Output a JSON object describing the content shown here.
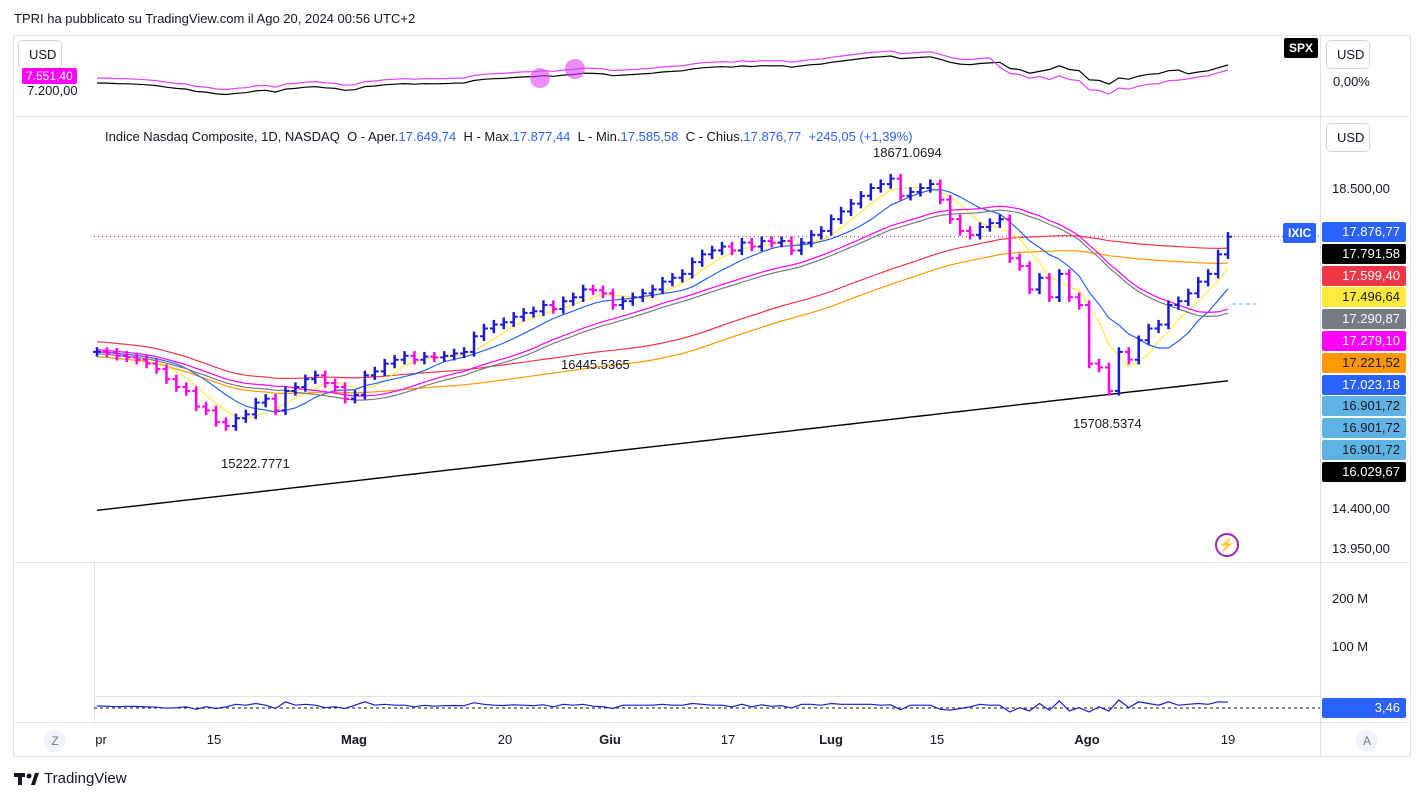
{
  "header": {
    "published": "TPRI ha pubblicato su TradingView.com il Ago 20, 2024 00:56 UTC+2"
  },
  "top_pane": {
    "currency_left": "USD",
    "currency_right": "USD",
    "symbol": "SPX",
    "left_tag": "7.551,40",
    "left_level": "7.200,00",
    "right_level": "0,00%"
  },
  "main_pane": {
    "currency": "USD",
    "legend": {
      "name": "Indice Nasdaq Composite, 1D, NASDAQ",
      "o_label": "O - Aper.",
      "o_value": "17.649,74",
      "h_label": "H - Max.",
      "h_value": "17.877,44",
      "l_label": "L - Min.",
      "l_value": "17.585,58",
      "c_label": "C - Chius.",
      "c_value": "17.876,77",
      "change": "+245,05 (+1,39%)"
    },
    "symbol_tag": "IXIC",
    "price_tags": [
      {
        "text": "17.876,77",
        "bg": "#2962ff",
        "fg": "#ffffff"
      },
      {
        "text": "17.791,58",
        "bg": "#000000",
        "fg": "#ffffff"
      },
      {
        "text": "17.599,40",
        "bg": "#f23645",
        "fg": "#ffffff"
      },
      {
        "text": "17.496,64",
        "bg": "#ffeb3b",
        "fg": "#131722"
      },
      {
        "text": "17.290,87",
        "bg": "#787b86",
        "fg": "#ffffff"
      },
      {
        "text": "17.279,10",
        "bg": "#ff00ff",
        "fg": "#ffffff"
      },
      {
        "text": "17.221,52",
        "bg": "#ff9800",
        "fg": "#131722"
      },
      {
        "text": "17.023,18",
        "bg": "#2962ff",
        "fg": "#ffffff"
      },
      {
        "text": "16.901,72",
        "bg": "#5eb3e4",
        "fg": "#131722"
      },
      {
        "text": "16.901,72",
        "bg": "#5eb3e4",
        "fg": "#131722"
      },
      {
        "text": "16.901,72",
        "bg": "#5eb3e4",
        "fg": "#131722"
      },
      {
        "text": "16.029,67",
        "bg": "#000000",
        "fg": "#ffffff"
      }
    ],
    "y_labels": [
      "18.500,00",
      "14.400,00",
      "13.950,00"
    ],
    "annotations": [
      "18671.0694",
      "16445.5365",
      "15222.7771",
      "15708.5374"
    ]
  },
  "volume_pane": {
    "labels": [
      "200 M",
      "100 M"
    ]
  },
  "osc_pane": {
    "tag": "3,46",
    "tag_bg": "#2962ff"
  },
  "x_axis": {
    "labels": [
      "pr",
      "15",
      "Mag",
      "20",
      "Giu",
      "17",
      "Lug",
      "15",
      "Ago",
      "19"
    ],
    "bold": [
      false,
      false,
      true,
      false,
      true,
      false,
      true,
      false,
      true,
      false
    ]
  },
  "footer": {
    "brand": "TradingView",
    "z_btn": "Z",
    "a_btn": "A"
  },
  "chart_data": {
    "type": "ohlc",
    "title": "Indice Nasdaq Composite, 1D, NASDAQ",
    "x_ticks": [
      "pr",
      "15",
      "Mag",
      "20",
      "Giu",
      "17",
      "Lug",
      "15",
      "Ago",
      "19"
    ],
    "y_ticks": [
      18500,
      14400,
      13950
    ],
    "last": {
      "open": 17649.74,
      "high": 17877.44,
      "low": 17585.58,
      "close": 17876.77,
      "change": 245.05,
      "change_pct": 1.39
    },
    "closes": [
      16400,
      16390,
      16350,
      16330,
      16300,
      16250,
      16180,
      16050,
      15950,
      15900,
      15700,
      15650,
      15500,
      15450,
      15550,
      15600,
      15750,
      15800,
      15650,
      15900,
      15950,
      16050,
      16100,
      16000,
      15950,
      15800,
      15850,
      16100,
      16150,
      16250,
      16300,
      16350,
      16300,
      16340,
      16330,
      16350,
      16380,
      16400,
      16600,
      16700,
      16750,
      16780,
      16850,
      16900,
      16920,
      17000,
      16950,
      17050,
      17100,
      17200,
      17190,
      17150,
      17000,
      17050,
      17100,
      17150,
      17200,
      17300,
      17350,
      17400,
      17550,
      17650,
      17700,
      17750,
      17700,
      17800,
      17750,
      17820,
      17800,
      17820,
      17700,
      17800,
      17900,
      17950,
      18100,
      18200,
      18300,
      18400,
      18500,
      18550,
      18620,
      18400,
      18450,
      18500,
      18550,
      18350,
      18100,
      17950,
      17900,
      18000,
      18050,
      18100,
      17600,
      17500,
      17200,
      17350,
      17100,
      17400,
      17100,
      17000,
      16250,
      16200,
      15900,
      16400,
      16300,
      16550,
      16700,
      16750,
      17000,
      17050,
      17150,
      17300,
      17400,
      17650,
      17876
    ],
    "highs_lows_marked": [
      {
        "label": "18671.0694",
        "value": 18671.0694
      },
      {
        "label": "16445.5365",
        "value": 16445.5365
      },
      {
        "label": "15222.7771",
        "value": 15222.7771
      },
      {
        "label": "15708.5374",
        "value": 15708.5374
      }
    ],
    "moving_averages": [
      {
        "color": "#000000",
        "last": 16029.67
      },
      {
        "color": "#f23645",
        "last": 17599.4
      },
      {
        "color": "#ff9800",
        "last": 17221.52
      },
      {
        "color": "#ffeb3b",
        "last": 17496.64
      },
      {
        "color": "#2962ff",
        "last": 17023.18
      },
      {
        "color": "#ff00ff",
        "last": 17279.1
      },
      {
        "color": "#787b86",
        "last": 17290.87
      }
    ],
    "oscillator_last": 3.46
  }
}
